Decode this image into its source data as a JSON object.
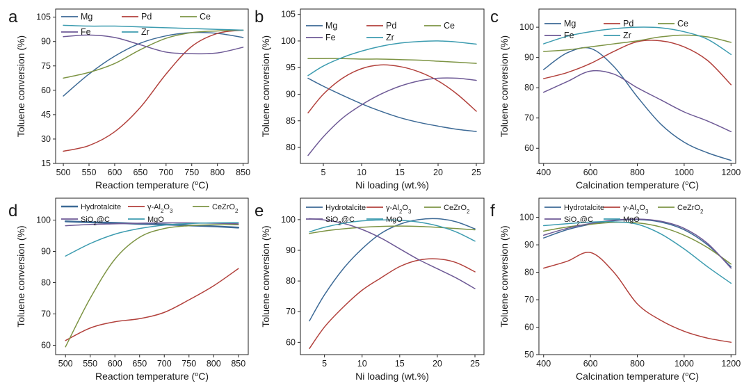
{
  "colors": {
    "Mg": "#3d6a96",
    "Pd": "#b2413c",
    "Ce": "#7d9444",
    "Fe": "#6e5a96",
    "Zr": "#3d9cb0",
    "Hydrotalcite": "#3d6a96",
    "gAl2O3": "#b2413c",
    "CeZrO2": "#7d9444",
    "SiO2C": "#6e5a96",
    "MgO": "#3d9cb0"
  },
  "chart_data": [
    {
      "panel": "a",
      "type": "line",
      "xlabel": "Reaction temperature (°C)",
      "ylabel": "Toluene conversion (%)",
      "xlim": [
        485,
        860
      ],
      "ylim": [
        15,
        110
      ],
      "xticks": [
        500,
        550,
        600,
        650,
        700,
        750,
        800,
        850
      ],
      "yticks": [
        15,
        30,
        45,
        60,
        75,
        90,
        105
      ],
      "legend": [
        [
          "Mg",
          "Pd",
          "Ce"
        ],
        [
          "Fe",
          "Zr"
        ]
      ],
      "series": [
        {
          "name": "Mg",
          "x": [
            500,
            550,
            600,
            650,
            700,
            750,
            800,
            850
          ],
          "y": [
            56.5,
            70,
            81,
            89,
            93.5,
            95.5,
            95,
            92.5
          ]
        },
        {
          "name": "Pd",
          "x": [
            500,
            550,
            600,
            650,
            700,
            750,
            800,
            850
          ],
          "y": [
            22.5,
            26,
            34.5,
            49.5,
            70,
            87,
            95,
            97
          ]
        },
        {
          "name": "Ce",
          "x": [
            500,
            550,
            600,
            650,
            700,
            750,
            800,
            850
          ],
          "y": [
            67.5,
            71,
            76.5,
            85,
            92,
            95.5,
            96.5,
            97
          ]
        },
        {
          "name": "Fe",
          "x": [
            500,
            550,
            600,
            650,
            700,
            750,
            800,
            850
          ],
          "y": [
            93,
            94,
            92.5,
            88,
            83.5,
            82.5,
            83,
            86.5
          ]
        },
        {
          "name": "Zr",
          "x": [
            500,
            550,
            600,
            650,
            700,
            750,
            800,
            850
          ],
          "y": [
            100,
            99.5,
            99.5,
            99,
            98.5,
            98,
            97.5,
            97
          ]
        }
      ]
    },
    {
      "panel": "b",
      "type": "line",
      "xlabel": "Ni loading (wt.%)",
      "ylabel": "Toluene conversion (%)",
      "xlim": [
        2,
        26
      ],
      "ylim": [
        77,
        106
      ],
      "xticks": [
        5,
        10,
        15,
        20,
        25
      ],
      "yticks": [
        80,
        85,
        90,
        95,
        100,
        105
      ],
      "legend": [
        [
          "Mg",
          "Pd",
          "Ce"
        ],
        [
          "Fe",
          "Zr"
        ]
      ],
      "series": [
        {
          "name": "Mg",
          "x": [
            3,
            5,
            7.5,
            10,
            12.5,
            15,
            17.5,
            20,
            22.5,
            25
          ],
          "y": [
            93,
            91.5,
            89.8,
            88.2,
            86.8,
            85.6,
            84.7,
            84,
            83.4,
            83
          ]
        },
        {
          "name": "Pd",
          "x": [
            3,
            5,
            7.5,
            10,
            12.5,
            15,
            17.5,
            20,
            22.5,
            25
          ],
          "y": [
            86.5,
            90,
            93,
            94.8,
            95.5,
            95.2,
            94.2,
            92.5,
            90,
            86.8
          ]
        },
        {
          "name": "Ce",
          "x": [
            3,
            5,
            7.5,
            10,
            12.5,
            15,
            17.5,
            20,
            22.5,
            25
          ],
          "y": [
            96.7,
            96.7,
            96.7,
            96.6,
            96.6,
            96.5,
            96.4,
            96.2,
            96,
            95.8
          ]
        },
        {
          "name": "Fe",
          "x": [
            3,
            5,
            7.5,
            10,
            12.5,
            15,
            17.5,
            20,
            22.5,
            25
          ],
          "y": [
            78.5,
            82,
            85.5,
            88,
            90,
            91.5,
            92.5,
            93,
            93,
            92.6
          ]
        },
        {
          "name": "Zr",
          "x": [
            3,
            5,
            7.5,
            10,
            12.5,
            15,
            17.5,
            20,
            22.5,
            25
          ],
          "y": [
            93.5,
            95.3,
            96.9,
            98.1,
            99,
            99.6,
            99.9,
            100,
            99.8,
            99.4
          ]
        }
      ]
    },
    {
      "panel": "c",
      "type": "line",
      "xlabel": "Calcination temperature (°C)",
      "ylabel": "Toluene conversion (%)",
      "xlim": [
        380,
        1220
      ],
      "ylim": [
        55,
        106
      ],
      "xticks": [
        400,
        600,
        800,
        1000,
        1200
      ],
      "yticks": [
        60,
        70,
        80,
        90,
        100
      ],
      "legend": [
        [
          "Mg",
          "Pd",
          "Ce"
        ],
        [
          "Fe",
          "Zr"
        ]
      ],
      "series": [
        {
          "name": "Mg",
          "x": [
            400,
            500,
            600,
            700,
            800,
            900,
            1000,
            1100,
            1200
          ],
          "y": [
            86,
            91.5,
            93,
            87,
            77,
            68,
            62,
            58.5,
            56
          ]
        },
        {
          "name": "Pd",
          "x": [
            400,
            500,
            600,
            700,
            800,
            900,
            1000,
            1100,
            1200
          ],
          "y": [
            83,
            85,
            88,
            92,
            95.2,
            95.5,
            93.5,
            89,
            81
          ]
        },
        {
          "name": "Ce",
          "x": [
            400,
            500,
            600,
            700,
            800,
            900,
            1000,
            1100,
            1200
          ],
          "y": [
            92,
            92.5,
            93.5,
            94.5,
            95.5,
            96.8,
            97.4,
            96.8,
            95
          ]
        },
        {
          "name": "Fe",
          "x": [
            400,
            500,
            600,
            700,
            800,
            900,
            1000,
            1100,
            1200
          ],
          "y": [
            78.5,
            82,
            85.5,
            84.5,
            80,
            76,
            72,
            69,
            65.5
          ]
        },
        {
          "name": "Zr",
          "x": [
            400,
            500,
            600,
            700,
            800,
            900,
            1000,
            1100,
            1200
          ],
          "y": [
            94.5,
            97,
            98.5,
            99.5,
            100,
            99.8,
            98.5,
            96,
            91
          ]
        }
      ]
    },
    {
      "panel": "d",
      "type": "line",
      "xlabel": "Reaction temperature (°C)",
      "ylabel": "Toluene conversion (%)",
      "xlim": [
        480,
        870
      ],
      "ylim": [
        57,
        107
      ],
      "xticks": [
        500,
        550,
        600,
        650,
        700,
        750,
        800,
        850
      ],
      "yticks": [
        60,
        70,
        80,
        90,
        100
      ],
      "legend": [
        [
          "Hydrotalcite",
          "γ-Al₂O₃",
          "CeZrO₂"
        ],
        [
          "SiO₂@C",
          "MgO"
        ]
      ],
      "series": [
        {
          "name": "Hydrotalcite",
          "x": [
            500,
            550,
            600,
            650,
            700,
            750,
            800,
            850
          ],
          "y": [
            99.6,
            99.3,
            99.1,
            98.8,
            98.6,
            98.3,
            98,
            97.6
          ]
        },
        {
          "name": "γ-Al₂O₃",
          "x": [
            500,
            550,
            600,
            650,
            700,
            750,
            800,
            850
          ],
          "y": [
            61.5,
            65.5,
            67.5,
            68.5,
            70.5,
            74.5,
            79,
            84.5
          ]
        },
        {
          "name": "CeZrO₂",
          "x": [
            500,
            550,
            600,
            650,
            700,
            750,
            800,
            850
          ],
          "y": [
            59.5,
            75,
            87.5,
            94.5,
            97.3,
            98.2,
            98.5,
            98.5
          ]
        },
        {
          "name": "SiO₂@C",
          "x": [
            500,
            550,
            600,
            650,
            700,
            750,
            800,
            850
          ],
          "y": [
            98.2,
            98.6,
            98.8,
            99,
            99.1,
            99.1,
            99,
            98.8
          ]
        },
        {
          "name": "MgO",
          "x": [
            500,
            550,
            600,
            650,
            700,
            750,
            800,
            850
          ],
          "y": [
            88.5,
            92.5,
            95.5,
            97.3,
            98.4,
            98.9,
            99.1,
            99.2
          ]
        }
      ]
    },
    {
      "panel": "e",
      "type": "line",
      "xlabel": "Ni loading (wt.%)",
      "ylabel": "Toluene conversion (%)",
      "xlim": [
        1.8,
        26.2
      ],
      "ylim": [
        56,
        107
      ],
      "xticks": [
        5,
        10,
        15,
        20,
        25
      ],
      "yticks": [
        60,
        70,
        80,
        90,
        100
      ],
      "legend": [
        [
          "Hydrotalcite",
          "γ-Al₂O₃",
          "CeZrO₂"
        ],
        [
          "SiO₂@C",
          "MgO"
        ]
      ],
      "series": [
        {
          "name": "Hydrotalcite",
          "x": [
            3,
            5,
            7.5,
            10,
            12.5,
            15,
            17.5,
            20,
            22.5,
            25
          ],
          "y": [
            67,
            75.5,
            84,
            90.5,
            95.5,
            98.5,
            100,
            100.3,
            99.3,
            97
          ]
        },
        {
          "name": "γ-Al₂O₃",
          "x": [
            3,
            5,
            7.5,
            10,
            12.5,
            15,
            17.5,
            20,
            22.5,
            25
          ],
          "y": [
            58,
            65,
            71.5,
            77,
            81,
            84.7,
            86.8,
            87.2,
            86,
            83
          ]
        },
        {
          "name": "CeZrO₂",
          "x": [
            3,
            5,
            7.5,
            10,
            12.5,
            15,
            17.5,
            20,
            22.5,
            25
          ],
          "y": [
            95.5,
            96.3,
            97,
            97.5,
            97.8,
            97.9,
            97.8,
            97.5,
            97.1,
            96.7
          ]
        },
        {
          "name": "SiO₂@C",
          "x": [
            3,
            5,
            7.5,
            10,
            12.5,
            15,
            17.5,
            20,
            22.5,
            25
          ],
          "y": [
            100.3,
            99.9,
            98.8,
            96.8,
            94,
            90.5,
            87,
            84,
            81,
            77.5
          ]
        },
        {
          "name": "MgO",
          "x": [
            3,
            5,
            7.5,
            10,
            12.5,
            15,
            17.5,
            20,
            22.5,
            25
          ],
          "y": [
            96,
            97.5,
            98.8,
            99.6,
            99.9,
            99.8,
            99.2,
            98,
            96,
            93
          ]
        }
      ]
    },
    {
      "panel": "f",
      "type": "line",
      "xlabel": "Calcination temperature (°C)",
      "ylabel": "Toluene conversion (%)",
      "xlim": [
        380,
        1220
      ],
      "ylim": [
        50,
        107
      ],
      "xticks": [
        400,
        600,
        800,
        1000,
        1200
      ],
      "yticks": [
        50,
        60,
        70,
        80,
        90,
        100
      ],
      "legend": [
        [
          "Hydrotalcite",
          "γ-Al₂O₃",
          "CeZrO₂"
        ],
        [
          "SiO₂@C",
          "MgO"
        ]
      ],
      "series": [
        {
          "name": "Hydrotalcite",
          "x": [
            400,
            500,
            600,
            700,
            800,
            900,
            1000,
            1100,
            1200
          ],
          "y": [
            92.5,
            95.5,
            97.5,
            98.8,
            99.2,
            98.3,
            95.5,
            90,
            82
          ]
        },
        {
          "name": "γ-Al₂O₃",
          "x": [
            400,
            500,
            600,
            700,
            800,
            900,
            1000,
            1100,
            1200
          ],
          "y": [
            81.5,
            84,
            87.2,
            80,
            68.5,
            62.5,
            58.5,
            56,
            54.5
          ]
        },
        {
          "name": "CeZrO₂",
          "x": [
            400,
            500,
            600,
            700,
            800,
            900,
            1000,
            1100,
            1200
          ],
          "y": [
            95,
            96.5,
            97.5,
            98.2,
            98,
            96.5,
            93.5,
            89,
            83
          ]
        },
        {
          "name": "SiO₂@C",
          "x": [
            400,
            500,
            600,
            700,
            800,
            900,
            1000,
            1100,
            1200
          ],
          "y": [
            93.5,
            96,
            97.8,
            99,
            99.4,
            98.6,
            96,
            90.5,
            81.5
          ]
        },
        {
          "name": "MgO",
          "x": [
            400,
            500,
            600,
            700,
            800,
            900,
            1000,
            1100,
            1200
          ],
          "y": [
            97,
            97.7,
            98.3,
            98.4,
            97.5,
            94,
            88.5,
            82,
            76
          ]
        }
      ]
    }
  ]
}
